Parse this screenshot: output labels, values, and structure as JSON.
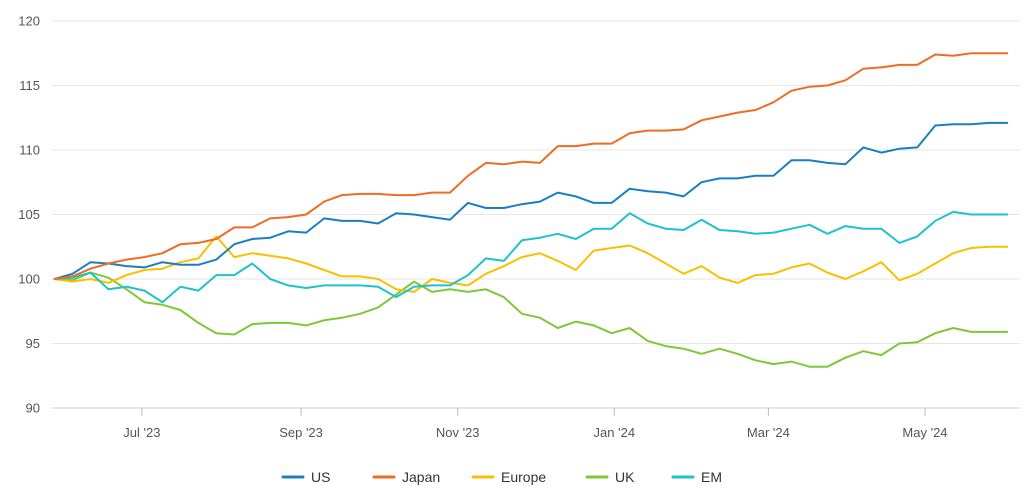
{
  "chart_data": {
    "type": "line",
    "title": "",
    "xlabel": "",
    "ylabel": "",
    "ylim": [
      90,
      120
    ],
    "yticks": [
      90,
      95,
      100,
      105,
      110,
      115,
      120
    ],
    "xlim": [
      "2023-05-27",
      "2024-06-07"
    ],
    "xticks": [
      {
        "date": "2023-07-01",
        "label": "Jul '23"
      },
      {
        "date": "2023-09-01",
        "label": "Sep '23"
      },
      {
        "date": "2023-11-01",
        "label": "Nov '23"
      },
      {
        "date": "2024-01-01",
        "label": "Jan '24"
      },
      {
        "date": "2024-03-01",
        "label": "Mar '24"
      },
      {
        "date": "2024-05-01",
        "label": "May '24"
      }
    ],
    "grid": "horizontal",
    "legend_position": "bottom",
    "x": [
      "2023-05-28",
      "2023-06-04",
      "2023-06-11",
      "2023-06-18",
      "2023-06-25",
      "2023-07-02",
      "2023-07-09",
      "2023-07-16",
      "2023-07-23",
      "2023-07-30",
      "2023-08-06",
      "2023-08-13",
      "2023-08-20",
      "2023-08-27",
      "2023-09-03",
      "2023-09-10",
      "2023-09-17",
      "2023-09-24",
      "2023-10-01",
      "2023-10-08",
      "2023-10-15",
      "2023-10-22",
      "2023-10-29",
      "2023-11-05",
      "2023-11-12",
      "2023-11-19",
      "2023-11-26",
      "2023-12-03",
      "2023-12-10",
      "2023-12-17",
      "2023-12-24",
      "2023-12-31",
      "2024-01-07",
      "2024-01-14",
      "2024-01-21",
      "2024-01-28",
      "2024-02-04",
      "2024-02-11",
      "2024-02-18",
      "2024-02-25",
      "2024-03-03",
      "2024-03-10",
      "2024-03-17",
      "2024-03-24",
      "2024-03-31",
      "2024-04-07",
      "2024-04-14",
      "2024-04-21",
      "2024-04-28",
      "2024-05-05",
      "2024-05-12",
      "2024-05-19",
      "2024-05-26",
      "2024-06-02"
    ],
    "series": [
      {
        "name": "US",
        "color": "#1a7fc1",
        "values": [
          100,
          100.4,
          101.3,
          101.2,
          101.0,
          100.9,
          101.3,
          101.1,
          101.1,
          101.5,
          102.7,
          103.1,
          103.2,
          103.7,
          103.6,
          104.7,
          104.5,
          104.5,
          104.3,
          105.1,
          105.0,
          104.8,
          104.6,
          105.9,
          105.5,
          105.5,
          105.8,
          106.0,
          106.7,
          106.4,
          105.9,
          105.9,
          107.0,
          106.8,
          106.7,
          106.4,
          107.5,
          107.8,
          107.8,
          108.0,
          108.0,
          109.2,
          109.2,
          109.0,
          108.9,
          110.2,
          109.8,
          110.1,
          110.2,
          111.9,
          112.0,
          112.0,
          112.1,
          112.1
        ]
      },
      {
        "name": "Japan",
        "color": "#ef6c25",
        "values": [
          100,
          100.2,
          100.8,
          101.2,
          101.5,
          101.7,
          102.0,
          102.7,
          102.8,
          103.1,
          104.0,
          104.0,
          104.7,
          104.8,
          105.0,
          106.0,
          106.5,
          106.6,
          106.6,
          106.5,
          106.5,
          106.7,
          106.7,
          108.0,
          109.0,
          108.9,
          109.1,
          109.0,
          110.3,
          110.3,
          110.5,
          110.5,
          111.3,
          111.5,
          111.5,
          111.6,
          112.3,
          112.6,
          112.9,
          113.1,
          113.7,
          114.6,
          114.9,
          115.0,
          115.4,
          116.3,
          116.4,
          116.6,
          116.6,
          117.4,
          117.3,
          117.5,
          117.5,
          117.5
        ]
      },
      {
        "name": "Europe",
        "color": "#f7c100",
        "values": [
          100,
          99.8,
          100.0,
          99.7,
          100.3,
          100.7,
          100.8,
          101.3,
          101.6,
          103.3,
          101.7,
          102.0,
          101.8,
          101.6,
          101.2,
          100.7,
          100.2,
          100.2,
          100.0,
          99.2,
          99.0,
          100.0,
          99.7,
          99.5,
          100.4,
          101.0,
          101.7,
          102.0,
          101.4,
          100.7,
          102.2,
          102.4,
          102.6,
          102.0,
          101.2,
          100.4,
          101.0,
          100.1,
          99.7,
          100.3,
          100.4,
          100.9,
          101.2,
          100.5,
          100.0,
          100.6,
          101.3,
          99.9,
          100.4,
          101.2,
          102.0,
          102.4,
          102.5,
          102.5
        ]
      },
      {
        "name": "UK",
        "color": "#7ec837",
        "values": [
          100,
          99.9,
          100.5,
          100.1,
          99.2,
          98.2,
          98.0,
          97.6,
          96.6,
          95.8,
          95.7,
          96.5,
          96.6,
          96.6,
          96.4,
          96.8,
          97.0,
          97.3,
          97.8,
          98.8,
          99.8,
          99.0,
          99.2,
          99.0,
          99.2,
          98.6,
          97.3,
          97.0,
          96.2,
          96.7,
          96.4,
          95.8,
          96.2,
          95.2,
          94.8,
          94.6,
          94.2,
          94.6,
          94.2,
          93.7,
          93.4,
          93.6,
          93.2,
          93.2,
          93.9,
          94.4,
          94.1,
          95.0,
          95.1,
          95.8,
          96.2,
          95.9,
          95.9,
          95.9
        ]
      },
      {
        "name": "EM",
        "color": "#1ec2cc",
        "values": [
          100,
          100.1,
          100.5,
          99.2,
          99.4,
          99.1,
          98.2,
          99.4,
          99.1,
          100.3,
          100.3,
          101.2,
          100.0,
          99.5,
          99.3,
          99.5,
          99.5,
          99.5,
          99.4,
          98.6,
          99.4,
          99.5,
          99.5,
          100.3,
          101.6,
          101.4,
          103.0,
          103.2,
          103.5,
          103.1,
          103.9,
          103.9,
          105.1,
          104.3,
          103.9,
          103.8,
          104.6,
          103.8,
          103.7,
          103.5,
          103.6,
          103.9,
          104.2,
          103.5,
          104.1,
          103.9,
          103.9,
          102.8,
          103.3,
          104.5,
          105.2,
          105.0,
          105.0,
          105.0
        ]
      }
    ]
  }
}
